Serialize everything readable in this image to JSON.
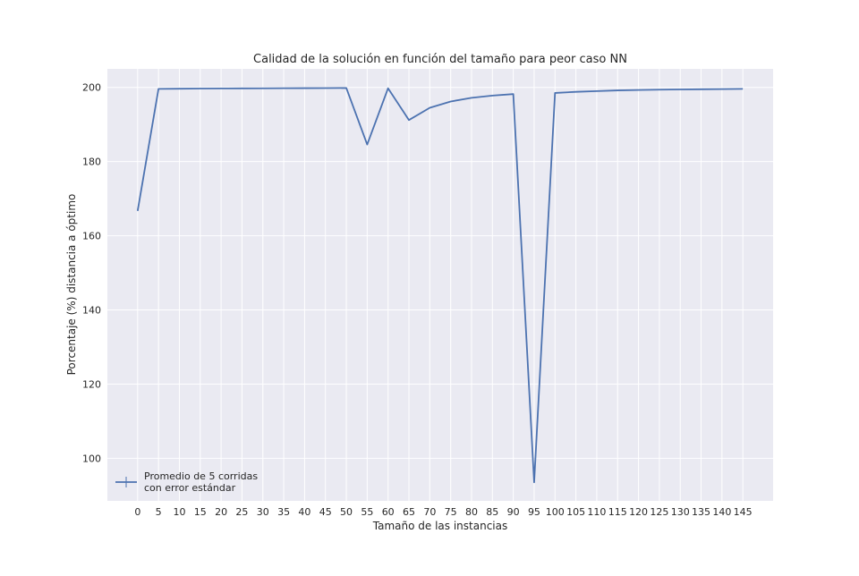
{
  "chart_data": {
    "type": "line",
    "title": "Calidad de la solución en función del tamaño para peor caso NN",
    "xlabel": "Tamaño de las instancias",
    "ylabel": "Porcentaje (%) distancia a óptimo",
    "xlim": [
      -7.25,
      152.25
    ],
    "ylim": [
      88.5,
      205
    ],
    "xticks": [
      0,
      5,
      10,
      15,
      20,
      25,
      30,
      35,
      40,
      45,
      50,
      55,
      60,
      65,
      70,
      75,
      80,
      85,
      90,
      95,
      100,
      105,
      110,
      115,
      120,
      125,
      130,
      135,
      140,
      145
    ],
    "yticks": [
      100,
      120,
      140,
      160,
      180,
      200
    ],
    "grid": true,
    "legend_position": "lower-left",
    "colors": {
      "line": "#4c72b0",
      "axes_bg": "#eaeaf2",
      "grid": "#ffffff"
    },
    "series": [
      {
        "name": "Promedio de 5 corridas\ncon error estándar",
        "x": [
          0,
          5,
          10,
          15,
          20,
          25,
          30,
          35,
          40,
          45,
          50,
          55,
          60,
          65,
          70,
          75,
          80,
          85,
          90,
          95,
          100,
          105,
          110,
          115,
          120,
          125,
          130,
          135,
          140,
          145
        ],
        "y": [
          166.7,
          199.6,
          199.65,
          199.7,
          199.72,
          199.74,
          199.76,
          199.78,
          199.8,
          199.82,
          199.84,
          184.6,
          199.76,
          191.2,
          194.5,
          196.2,
          197.2,
          197.8,
          198.2,
          93.5,
          198.5,
          198.8,
          199.0,
          199.2,
          199.3,
          199.4,
          199.45,
          199.5,
          199.55,
          199.6
        ]
      }
    ]
  }
}
